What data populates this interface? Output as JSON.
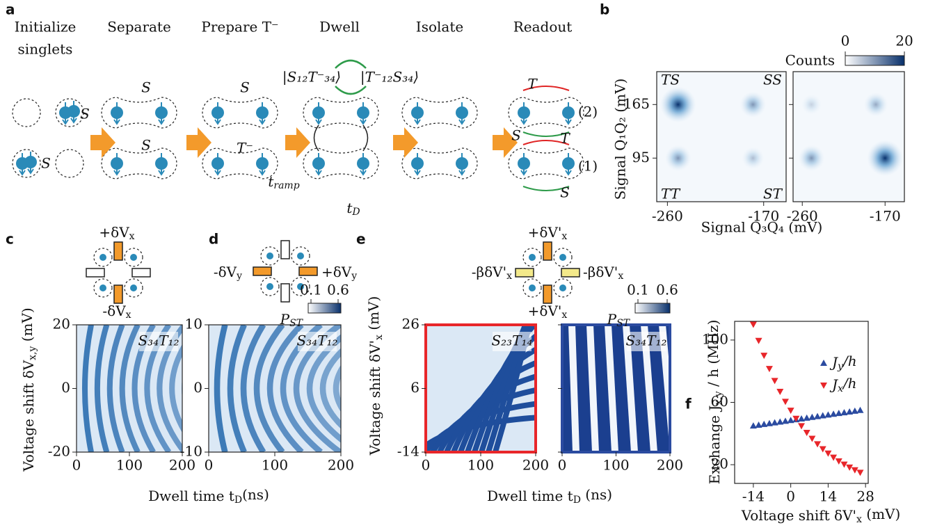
{
  "panel_labels": [
    "a",
    "b",
    "c",
    "d",
    "e",
    "f"
  ],
  "colors": {
    "singlet": "#2e9b4a",
    "triplet": "#e02424",
    "plain": "#111111"
  },
  "a": {
    "steps": [
      [
        "Initialize",
        "singlets"
      ],
      [
        "Separate"
      ],
      [
        "Prepare T⁻"
      ],
      [
        "Dwell"
      ],
      [
        "Isolate"
      ],
      [
        "Readout"
      ]
    ],
    "kets": [
      "|S₁₂T⁻₃₄⟩",
      "|T⁻₁₂S₃₄⟩"
    ],
    "annotations": [
      {
        "text": "S",
        "kind": "singlet"
      },
      {
        "text": "S",
        "kind": "singlet"
      },
      {
        "text": "S",
        "kind": "singlet"
      },
      {
        "text": "S",
        "kind": "singlet"
      },
      {
        "text": "S",
        "kind": "singlet"
      },
      {
        "text": "T⁻",
        "kind": "triplet"
      },
      {
        "text": [
          "t",
          "ramp"
        ],
        "kind": "plain"
      },
      {
        "text": [
          "t",
          "D"
        ],
        "kind": "plain"
      },
      {
        "text": "T",
        "kind": "triplet"
      },
      {
        "text": "(2)",
        "kind": "plain"
      },
      {
        "text": "S",
        "kind": "singlet"
      },
      {
        "text": "T",
        "kind": "triplet"
      },
      {
        "text": "(1)",
        "kind": "plain"
      },
      {
        "text": "S",
        "kind": "singlet"
      }
    ]
  },
  "b": {
    "colorbar": {
      "label": "Counts",
      "ticks": [
        0,
        20
      ],
      "lim": [
        0,
        20
      ]
    },
    "ylabel": "Signal Q₁Q₂ (mV)",
    "xlabel": "Signal Q₃Q₄ (mV)",
    "yticks": [
      165,
      95
    ],
    "ylim": [
      38,
      208
    ],
    "xticks": [
      -260,
      -170
    ],
    "xlim": [
      -270,
      -149
    ],
    "corners": [
      "TS",
      "SS",
      "TT",
      "ST"
    ]
  },
  "c": {
    "diagram_labels": [
      [
        "+δV",
        "x"
      ],
      [
        "-δV",
        "x"
      ]
    ],
    "ylabel": [
      "Voltage shift δV",
      "x,y",
      " (mV)"
    ],
    "yticks": [
      20,
      0,
      -20
    ],
    "ylim": [
      -20,
      20
    ],
    "xticks": [
      0,
      100,
      200
    ],
    "xlim": [
      0,
      200
    ],
    "inset": "S₃₄T₁₂"
  },
  "d": {
    "diagram_labels": [
      [
        "-δV",
        "y"
      ],
      [
        "+δV",
        "y"
      ]
    ],
    "yticks": [
      10,
      0,
      -10
    ],
    "ylim": [
      -10,
      10
    ],
    "xticks": [
      0,
      100,
      200
    ],
    "xlim": [
      0,
      200
    ],
    "inset": "S₃₄T₁₂",
    "colorbar": {
      "label": [
        "P",
        "ST"
      ],
      "ticks": [
        0.1,
        0.6
      ],
      "lim": [
        0.1,
        0.6
      ]
    }
  },
  "cd_xlabel": [
    "Dwell time t",
    "D",
    "(ns)"
  ],
  "e": {
    "diagram_labels": [
      [
        "+δV'",
        "x"
      ],
      [
        "-βδV'",
        "x"
      ],
      [
        "-βδV'",
        "x"
      ],
      [
        "+δV'",
        "x"
      ]
    ],
    "ylabel": [
      "Voltage shift δV'",
      "x",
      " (mV)"
    ],
    "yticks": [
      26,
      6,
      -14
    ],
    "ylim": [
      -14,
      26
    ],
    "xticks": [
      0,
      100,
      200
    ],
    "xlim": [
      0,
      200
    ],
    "insets": [
      "S₂₃T₁₄",
      "S₃₄T₁₂"
    ],
    "frame_colors": [
      "#e8262a",
      "#2b4ba0"
    ],
    "colorbar": {
      "label": [
        "P",
        "ST"
      ],
      "ticks": [
        0.1,
        0.6
      ],
      "lim": [
        0.1,
        0.6
      ]
    },
    "xlabel": [
      "Dwell time t",
      "D",
      " (ns)"
    ]
  },
  "chart_data": {
    "type": "line",
    "xlabel": [
      "Voltage shift δV'",
      "x",
      " (mV)"
    ],
    "ylabel": [
      "Exchange J",
      "x,y",
      " / h (MHz)"
    ],
    "x": [
      -14,
      -12,
      -10,
      -8,
      -6,
      -4,
      -2,
      0,
      2,
      4,
      6,
      8,
      10,
      12,
      14,
      16,
      18,
      20,
      22,
      24,
      26
    ],
    "series": [
      {
        "name": [
          "J",
          "y",
          "/h"
        ],
        "color": "#2b4ba0",
        "marker": "triangle-up",
        "values": [
          45,
          45.5,
          46,
          46.5,
          47,
          47.5,
          48,
          48.5,
          49,
          49.5,
          50,
          50.5,
          51,
          51.5,
          52,
          52.5,
          53,
          53.5,
          54,
          54.5,
          55
        ]
      },
      {
        "name": [
          "J",
          "x",
          "/h"
        ],
        "color": "#e8262a",
        "marker": "triangle-down",
        "values": [
          110,
          99.6,
          90.1,
          81.6,
          73.9,
          66.9,
          60.5,
          54.8,
          49.6,
          44.9,
          40.6,
          36.8,
          33.3,
          30.1,
          27.3,
          24.7,
          22.3,
          20.2,
          18.3,
          16.6,
          15.0
        ]
      }
    ],
    "xlim": [
      -21,
      29
    ],
    "ylim": [
      8,
      112
    ],
    "xticks": [
      -14,
      0,
      14,
      28
    ],
    "yticks": [
      20,
      60,
      100
    ]
  }
}
